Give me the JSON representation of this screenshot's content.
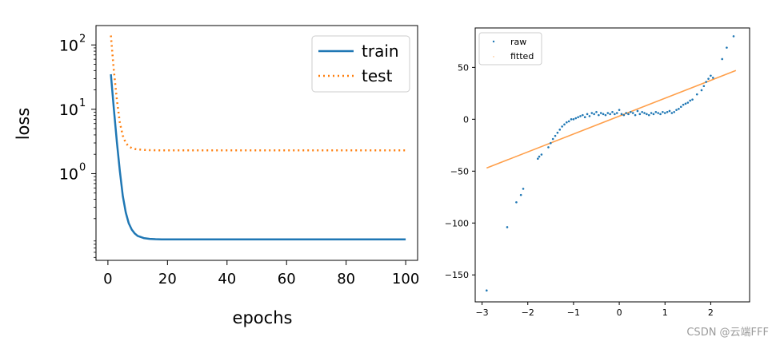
{
  "chart_data": [
    {
      "type": "line",
      "title": "",
      "xlabel": "epochs",
      "ylabel": "loss",
      "yscale": "log",
      "xlim": [
        -4,
        104
      ],
      "ylim": [
        0.045,
        200
      ],
      "xticks": [
        0,
        20,
        40,
        60,
        80,
        100
      ],
      "xtick_labels": [
        "0",
        "20",
        "40",
        "60",
        "80",
        "100"
      ],
      "yticks": [
        1,
        10,
        100
      ],
      "ytick_labels": [
        "10",
        "10",
        "10"
      ],
      "ytick_exponents": [
        "0",
        "1",
        "2"
      ],
      "legend_position": "top-right",
      "grid": false,
      "x": [
        1,
        2,
        3,
        4,
        5,
        6,
        7,
        8,
        9,
        10,
        12,
        14,
        16,
        18,
        20,
        25,
        30,
        40,
        50,
        60,
        70,
        80,
        90,
        100
      ],
      "series": [
        {
          "name": "train",
          "color": "#1f77b4",
          "style": "solid",
          "values": [
            35,
            10.2,
            3.1,
            1.1,
            0.45,
            0.25,
            0.17,
            0.135,
            0.118,
            0.108,
            0.1,
            0.097,
            0.096,
            0.0955,
            0.095,
            0.095,
            0.095,
            0.095,
            0.095,
            0.095,
            0.095,
            0.095,
            0.095,
            0.095
          ]
        },
        {
          "name": "test",
          "color": "#ff7f0e",
          "style": "dotted",
          "values": [
            140,
            40,
            14,
            6.2,
            3.9,
            3.0,
            2.65,
            2.5,
            2.42,
            2.38,
            2.34,
            2.32,
            2.31,
            2.3,
            2.3,
            2.3,
            2.3,
            2.3,
            2.3,
            2.3,
            2.3,
            2.3,
            2.3,
            2.3
          ]
        }
      ]
    },
    {
      "type": "scatter",
      "title": "",
      "xlabel": "",
      "ylabel": "",
      "xlim": [
        -3.15,
        2.85
      ],
      "ylim": [
        -176,
        88
      ],
      "xticks": [
        -3,
        -2,
        -1,
        0,
        1,
        2
      ],
      "xtick_labels": [
        "−3",
        "−2",
        "−1",
        "0",
        "1",
        "2"
      ],
      "yticks": [
        -150,
        -100,
        -50,
        0,
        50
      ],
      "ytick_labels": [
        "−150",
        "−100",
        "−50",
        "0",
        "50"
      ],
      "legend_position": "top-left",
      "grid": false,
      "series": [
        {
          "name": "raw",
          "color": "#1f77b4",
          "kind": "points",
          "x": [
            -2.9,
            -2.45,
            -2.25,
            -2.15,
            -2.1,
            -1.78,
            -1.75,
            -1.7,
            -1.55,
            -1.5,
            -1.45,
            -1.4,
            -1.35,
            -1.3,
            -1.25,
            -1.2,
            -1.15,
            -1.1,
            -1.05,
            -1.0,
            -0.95,
            -0.9,
            -0.85,
            -0.8,
            -0.75,
            -0.7,
            -0.65,
            -0.6,
            -0.55,
            -0.5,
            -0.45,
            -0.4,
            -0.35,
            -0.3,
            -0.25,
            -0.2,
            -0.15,
            -0.1,
            -0.05,
            0.0,
            0.05,
            0.1,
            0.15,
            0.2,
            0.25,
            0.3,
            0.35,
            0.4,
            0.45,
            0.5,
            0.55,
            0.6,
            0.65,
            0.7,
            0.75,
            0.8,
            0.85,
            0.9,
            0.95,
            1.0,
            1.05,
            1.1,
            1.15,
            1.2,
            1.25,
            1.3,
            1.35,
            1.4,
            1.45,
            1.5,
            1.55,
            1.6,
            1.7,
            1.8,
            1.85,
            1.9,
            1.95,
            2.0,
            2.05,
            2.25,
            2.35,
            2.5
          ],
          "y": [
            -165,
            -104,
            -80,
            -73,
            -67,
            -38,
            -36,
            -34,
            -27,
            -23,
            -19,
            -16,
            -13,
            -10,
            -7,
            -5,
            -3,
            -2,
            0,
            0,
            1,
            2,
            3,
            4,
            2,
            5,
            3,
            6,
            5,
            7,
            4,
            6,
            5,
            4,
            6,
            5,
            7,
            5,
            6,
            9,
            5,
            4,
            6,
            5,
            7,
            6,
            4,
            8,
            5,
            7,
            6,
            5,
            4,
            6,
            5,
            7,
            6,
            5,
            7,
            6,
            7,
            8,
            6,
            7,
            9,
            10,
            12,
            14,
            15,
            16,
            18,
            19,
            24,
            28,
            32,
            36,
            39,
            42,
            40,
            58,
            69,
            80
          ]
        },
        {
          "name": "fitted",
          "color": "#ff7f0e",
          "kind": "line",
          "x": [
            -2.9,
            2.55
          ],
          "y": [
            -47,
            47
          ]
        }
      ]
    }
  ],
  "watermark": "CSDN @云端FFF"
}
